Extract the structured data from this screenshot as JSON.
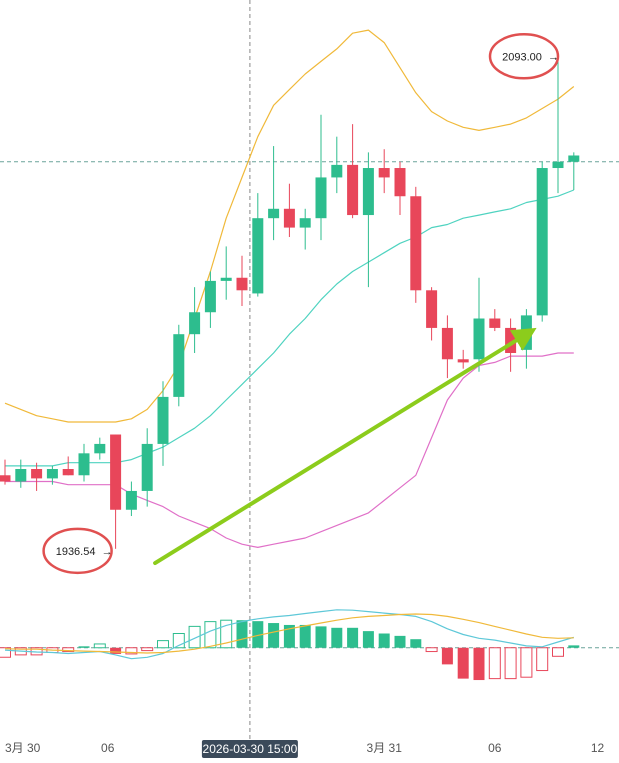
{
  "chart_data": {
    "type": "candlestick",
    "instrument": "",
    "colors": {
      "up": "#2dbd8e",
      "down": "#e8465a",
      "boll_upper": "#f0b93a",
      "boll_mid": "#4fd3c0",
      "boll_lower": "#e070c8",
      "macd_dif": "#5ec8d8",
      "macd_dea": "#f0b93a",
      "arrow": "#8ccc1c",
      "annotation_circle": "#e05050",
      "crosshair": "#888888"
    },
    "price_scale": {
      "ymin": 1925,
      "ymax": 2110
    },
    "candles": [
      {
        "o": 1960,
        "h": 1965,
        "l": 1957,
        "c": 1958
      },
      {
        "o": 1958,
        "h": 1965,
        "l": 1956,
        "c": 1962
      },
      {
        "o": 1962,
        "h": 1964,
        "l": 1955,
        "c": 1959
      },
      {
        "o": 1959,
        "h": 1963,
        "l": 1957,
        "c": 1962
      },
      {
        "o": 1962,
        "h": 1966,
        "l": 1960,
        "c": 1960
      },
      {
        "o": 1960,
        "h": 1970,
        "l": 1958,
        "c": 1967
      },
      {
        "o": 1967,
        "h": 1972,
        "l": 1965,
        "c": 1970
      },
      {
        "o": 1973,
        "h": 1973,
        "l": 1936.54,
        "c": 1949
      },
      {
        "o": 1949,
        "h": 1958,
        "l": 1947,
        "c": 1955
      },
      {
        "o": 1955,
        "h": 1975,
        "l": 1950,
        "c": 1970
      },
      {
        "o": 1970,
        "h": 1990,
        "l": 1963,
        "c": 1985
      },
      {
        "o": 1985,
        "h": 2008,
        "l": 1982,
        "c": 2005
      },
      {
        "o": 2005,
        "h": 2020,
        "l": 1999,
        "c": 2012
      },
      {
        "o": 2012,
        "h": 2025,
        "l": 2007,
        "c": 2022
      },
      {
        "o": 2022,
        "h": 2033,
        "l": 2016,
        "c": 2023
      },
      {
        "o": 2023,
        "h": 2030,
        "l": 2014,
        "c": 2019
      },
      {
        "o": 2018,
        "h": 2050,
        "l": 2017,
        "c": 2042
      },
      {
        "o": 2042,
        "h": 2065,
        "l": 2035,
        "c": 2045
      },
      {
        "o": 2045,
        "h": 2053,
        "l": 2036,
        "c": 2039
      },
      {
        "o": 2039,
        "h": 2045,
        "l": 2032,
        "c": 2042
      },
      {
        "o": 2042,
        "h": 2075,
        "l": 2035,
        "c": 2055
      },
      {
        "o": 2055,
        "h": 2068,
        "l": 2050,
        "c": 2059
      },
      {
        "o": 2059,
        "h": 2072,
        "l": 2042,
        "c": 2043
      },
      {
        "o": 2043,
        "h": 2063,
        "l": 2020,
        "c": 2058
      },
      {
        "o": 2058,
        "h": 2064,
        "l": 2050,
        "c": 2055
      },
      {
        "o": 2058,
        "h": 2060,
        "l": 2043,
        "c": 2049
      },
      {
        "o": 2049,
        "h": 2052,
        "l": 2015,
        "c": 2019
      },
      {
        "o": 2019,
        "h": 2020,
        "l": 2003,
        "c": 2007
      },
      {
        "o": 2007,
        "h": 2011,
        "l": 1991,
        "c": 1997
      },
      {
        "o": 1997,
        "h": 2000,
        "l": 1994,
        "c": 1996
      },
      {
        "o": 1997,
        "h": 2023,
        "l": 1993,
        "c": 2010
      },
      {
        "o": 2010,
        "h": 2013,
        "l": 2006,
        "c": 2007
      },
      {
        "o": 2007,
        "h": 2010,
        "l": 1993,
        "c": 1999
      },
      {
        "o": 2000,
        "h": 2013,
        "l": 1994,
        "c": 2011
      },
      {
        "o": 2011,
        "h": 2060,
        "l": 2009,
        "c": 2058
      },
      {
        "o": 2058,
        "h": 2093,
        "l": 2050,
        "c": 2060
      },
      {
        "o": 2060,
        "h": 2063,
        "l": 2051,
        "c": 2062
      }
    ],
    "bollinger": {
      "upper": [
        1983,
        1981,
        1979,
        1978,
        1977,
        1977,
        1977,
        1977,
        1978,
        1981,
        1987,
        1995,
        2010,
        2025,
        2042,
        2055,
        2068,
        2078,
        2083,
        2088,
        2092,
        2096,
        2101,
        2102,
        2098,
        2090,
        2082,
        2076,
        2073,
        2071,
        2070,
        2071,
        2072,
        2074,
        2077,
        2080,
        2084
      ],
      "mid": [
        1963,
        1963,
        1963,
        1963,
        1964,
        1964,
        1964,
        1964,
        1965,
        1967,
        1969,
        1972,
        1975,
        1979,
        1984,
        1989,
        1994,
        1999,
        2005,
        2010,
        2016,
        2021,
        2025,
        2028,
        2031,
        2034,
        2036,
        2039,
        2040,
        2042,
        2043,
        2044,
        2045,
        2047,
        2048,
        2049,
        2051
      ],
      "lower": [
        1958,
        1958,
        1958,
        1958,
        1957,
        1957,
        1957,
        1957,
        1954,
        1952,
        1950,
        1947,
        1945,
        1943,
        1940,
        1938,
        1937,
        1938,
        1939,
        1940,
        1942,
        1944,
        1946,
        1948,
        1952,
        1956,
        1960,
        1972,
        1984,
        1991,
        1995,
        1996,
        1998,
        1998,
        1998,
        1999,
        1999
      ]
    },
    "macd": {
      "baseline": 0,
      "range": [
        -11,
        9
      ],
      "histogram": [
        -2,
        -1.5,
        -1.5,
        -1,
        -0.8,
        0.3,
        0.8,
        -1.3,
        -1.3,
        -0.6,
        1.5,
        3,
        4.5,
        5.5,
        5.8,
        5.8,
        5.6,
        5.2,
        4.8,
        4.8,
        4.5,
        4.2,
        4.2,
        3.5,
        3,
        2.5,
        1.8,
        -0.8,
        -3.5,
        -6.5,
        -6.8,
        -6.5,
        -6.5,
        -6.2,
        -4.8,
        -1.8,
        0.5
      ],
      "dif": [
        -0.5,
        -0.7,
        -0.9,
        -1.0,
        -1.2,
        -1.0,
        -0.8,
        -1.5,
        -2.3,
        -2.0,
        -1.2,
        0.5,
        2,
        3.5,
        4.7,
        5.5,
        6.1,
        6.5,
        6.8,
        7.2,
        7.6,
        8.0,
        7.9,
        7.6,
        7.3,
        7.0,
        6.6,
        5.5,
        4.0,
        2.8,
        2.0,
        1.6,
        1.0,
        0.4,
        0.2,
        1.2,
        2.2
      ],
      "dea": [
        -0.2,
        -0.3,
        -0.3,
        -0.5,
        -0.6,
        -0.7,
        -0.8,
        -0.9,
        -1.0,
        -1.1,
        -1.0,
        -0.7,
        -0.3,
        0.3,
        1.0,
        1.8,
        2.6,
        3.3,
        4.0,
        4.6,
        5.2,
        5.8,
        6.3,
        6.6,
        6.8,
        7.0,
        7.1,
        7.0,
        6.6,
        6.0,
        5.3,
        4.5,
        3.7,
        2.9,
        2.2,
        2.0,
        2.1
      ]
    },
    "reference_price": 2060,
    "x_ticks": [
      {
        "label": "3月 30",
        "index": 0
      },
      {
        "label": "06",
        "index": 6.5
      },
      {
        "label": "3月 31",
        "index": 24
      },
      {
        "label": "06",
        "index": 31
      },
      {
        "label": "12",
        "index": 37.5
      }
    ],
    "crosshair": {
      "index": 15.5,
      "label": "2026-03-30 15:00"
    },
    "annotations": [
      {
        "name": "high",
        "text": "2093.00",
        "index": 35,
        "price": 2093
      },
      {
        "name": "low",
        "text": "1936.54",
        "index": 7,
        "price": 1936.54
      }
    ],
    "trend_arrow": {
      "from": {
        "index": 9.5,
        "price": 1932
      },
      "to": {
        "index": 33,
        "price": 2005
      }
    }
  }
}
